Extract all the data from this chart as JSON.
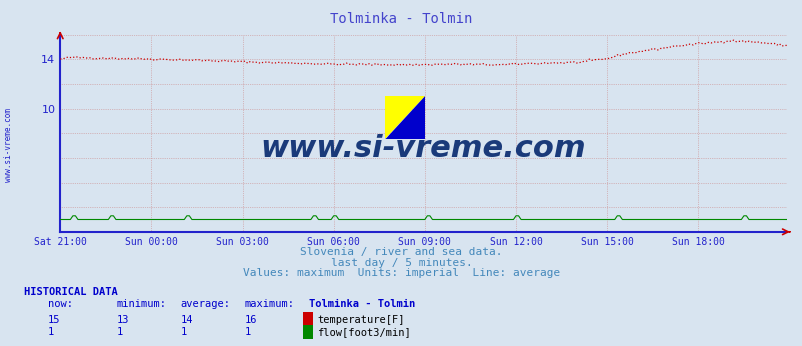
{
  "title": "Tolminka - Tolmin",
  "title_color": "#4444cc",
  "bg_color": "#d8e4f0",
  "plot_bg_color": "#d8e4f0",
  "grid_color": "#cc8888",
  "axis_color": "#2222cc",
  "tick_color": "#2222cc",
  "watermark_text": "www.si-vreme.com",
  "watermark_color": "#1a3a7a",
  "sidebar_text": "www.si-vreme.com",
  "sidebar_color": "#2222cc",
  "x_tick_labels": [
    "Sat 21:00",
    "Sun 00:00",
    "Sun 03:00",
    "Sun 06:00",
    "Sun 09:00",
    "Sun 12:00",
    "Sun 15:00",
    "Sun 18:00"
  ],
  "x_tick_positions": [
    0,
    36,
    72,
    108,
    144,
    180,
    216,
    252
  ],
  "ylim": [
    0,
    16
  ],
  "y_ticks": [
    10,
    14
  ],
  "n_points": 288,
  "footer_line1": "Slovenia / river and sea data.",
  "footer_line2": "last day / 5 minutes.",
  "footer_line3": "Values: maximum  Units: imperial  Line: average",
  "footer_color": "#4488bb",
  "hist_title": "HISTORICAL DATA",
  "hist_color": "#0000cc",
  "temp_color": "#cc0000",
  "flow_color": "#008800",
  "logo_yellow": "#ffff00",
  "logo_cyan": "#00ddff",
  "logo_blue": "#0000cc"
}
